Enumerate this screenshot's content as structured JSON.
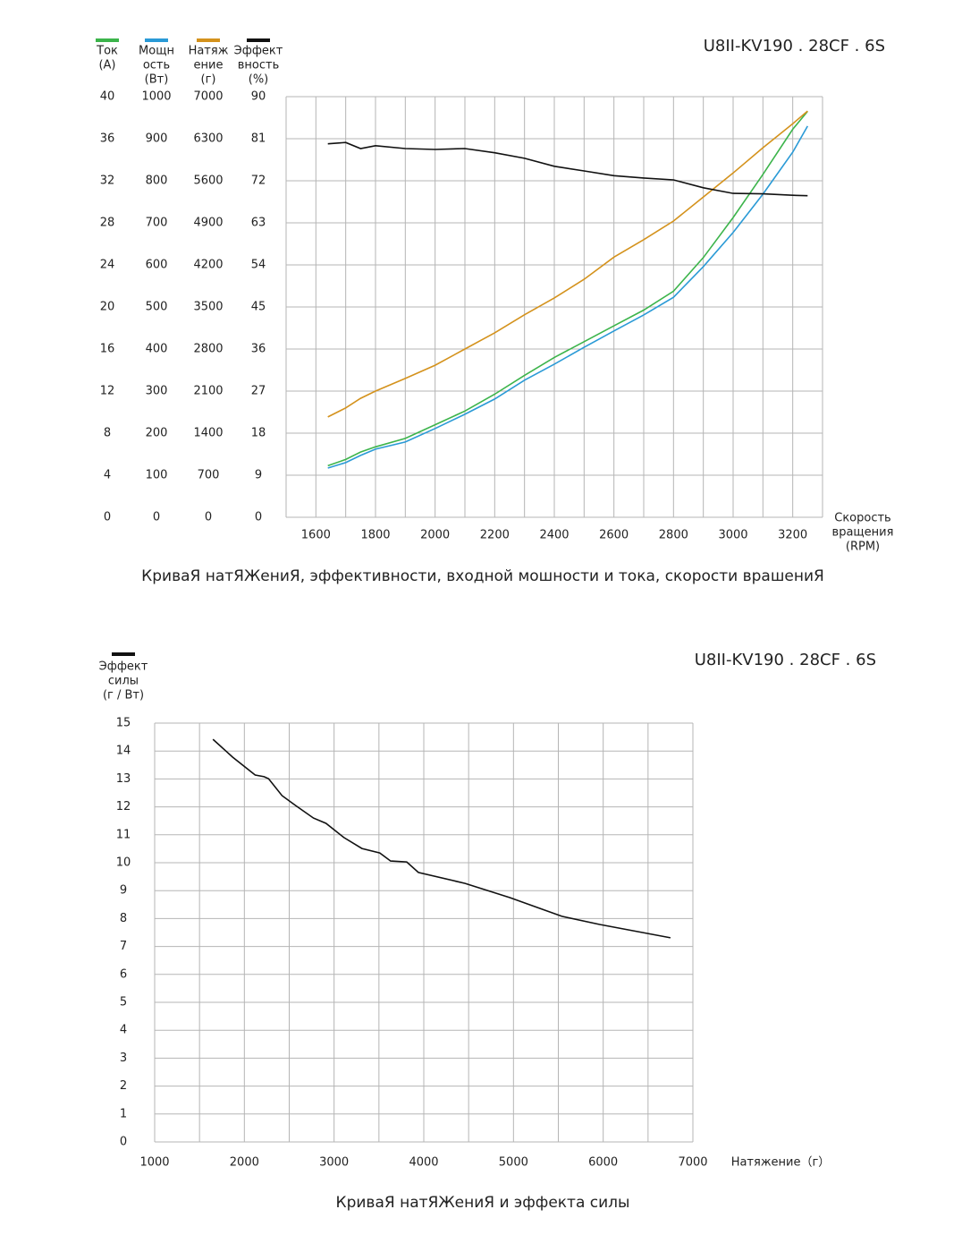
{
  "chart_data": [
    {
      "type": "line",
      "title": "КриваЯ натЯЖениЯ, эффективности, входной мошности и тока, скорости врашениЯ",
      "model": "U8II-KV190 . 28CF . 6S",
      "xlabel": [
        "Скорость",
        "вращения",
        "(RPM)"
      ],
      "xlim": [
        1500,
        3300
      ],
      "xticks": [
        1600,
        1800,
        2000,
        2200,
        2400,
        2600,
        2800,
        3000,
        3200
      ],
      "xgrid": [
        1500,
        1600,
        1700,
        1800,
        1900,
        2000,
        2100,
        2200,
        2300,
        2400,
        2500,
        2600,
        2700,
        2800,
        2900,
        3000,
        3100,
        3200,
        3300
      ],
      "grid": true,
      "x": [
        1640,
        1700,
        1750,
        1800,
        1900,
        2000,
        2100,
        2200,
        2300,
        2400,
        2500,
        2600,
        2700,
        2800,
        2900,
        3000,
        3100,
        3200,
        3250
      ],
      "axes": [
        {
          "label": [
            "Ток",
            "(A)"
          ],
          "ylim": [
            0,
            40
          ],
          "yticks": [
            0,
            4,
            8,
            12,
            16,
            20,
            24,
            28,
            32,
            36,
            40
          ]
        },
        {
          "label": [
            "Мощн",
            "ость",
            "(Вт)"
          ],
          "ylim": [
            0,
            1000
          ],
          "yticks": [
            0,
            100,
            200,
            300,
            400,
            500,
            600,
            700,
            800,
            900,
            1000
          ]
        },
        {
          "label": [
            "Натяж",
            "ение",
            "(г)"
          ],
          "ylim": [
            0,
            7000
          ],
          "yticks": [
            0,
            700,
            1400,
            2100,
            2800,
            3500,
            4200,
            4900,
            5600,
            6300,
            7000
          ]
        },
        {
          "label": [
            "Эффект",
            "вность",
            "(%)"
          ],
          "ylim": [
            0,
            90
          ],
          "yticks": [
            0,
            9,
            18,
            27,
            36,
            45,
            54,
            63,
            72,
            81,
            90
          ]
        }
      ],
      "series": [
        {
          "color": "#3cb44b",
          "axis": 0,
          "values": [
            4.9,
            5.5,
            6.2,
            6.7,
            7.5,
            8.8,
            10.1,
            11.7,
            13.5,
            15.2,
            16.7,
            18.2,
            19.7,
            21.5,
            24.7,
            28.5,
            32.6,
            36.9,
            38.6
          ]
        },
        {
          "color": "#2a9ad6",
          "axis": 1,
          "values": [
            117,
            130,
            147,
            162,
            179,
            211,
            245,
            281,
            326,
            364,
            404,
            443,
            481,
            523,
            596,
            677,
            768,
            868,
            930
          ]
        },
        {
          "color": "#d4921c",
          "axis": 2,
          "values": [
            1670,
            1820,
            1980,
            2100,
            2310,
            2530,
            2800,
            3070,
            3370,
            3650,
            3960,
            4330,
            4620,
            4930,
            5330,
            5730,
            6150,
            6550,
            6760
          ]
        },
        {
          "color": "#111111",
          "axis": 3,
          "values": [
            79.9,
            80.2,
            78.9,
            79.5,
            78.9,
            78.7,
            78.9,
            78.0,
            76.8,
            75.1,
            74.1,
            73.1,
            72.6,
            72.2,
            70.5,
            69.3,
            69.2,
            68.9,
            68.8
          ]
        }
      ]
    },
    {
      "type": "line",
      "title": "КриваЯ натЯЖениЯ и эффекта силы",
      "model": "U8II-KV190 . 28CF . 6S",
      "xlabel": [
        "Натяжение（г）"
      ],
      "xlim": [
        1000,
        7000
      ],
      "xticks": [
        1000,
        2000,
        3000,
        4000,
        5000,
        6000,
        7000
      ],
      "xgrid": [
        1000,
        1500,
        2000,
        2500,
        3000,
        3500,
        4000,
        4500,
        5000,
        5500,
        6000,
        6500,
        7000
      ],
      "grid": true,
      "x": [
        1650,
        1870,
        2120,
        2220,
        2270,
        2420,
        2570,
        2770,
        2910,
        3110,
        3310,
        3510,
        3630,
        3810,
        3940,
        4460,
        4960,
        5540,
        5960,
        6750
      ],
      "axes": [
        {
          "label": [
            "Эффект",
            "силы",
            "(г / Вт)"
          ],
          "ylim": [
            0,
            15
          ],
          "yticks": [
            0,
            1,
            2,
            3,
            4,
            5,
            6,
            7,
            8,
            9,
            10,
            11,
            12,
            13,
            14,
            15
          ]
        }
      ],
      "series": [
        {
          "color": "#111111",
          "axis": 0,
          "values": [
            14.42,
            13.78,
            13.14,
            13.08,
            13.01,
            12.4,
            12.05,
            11.6,
            11.41,
            10.9,
            10.51,
            10.35,
            10.06,
            10.03,
            9.65,
            9.26,
            8.75,
            8.08,
            7.79,
            7.31
          ]
        }
      ]
    }
  ]
}
